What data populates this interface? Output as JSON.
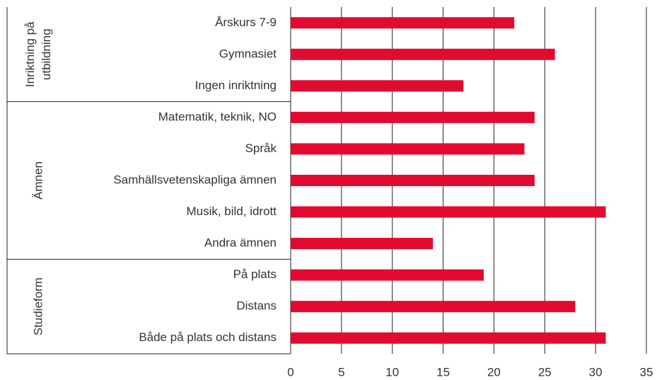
{
  "chart_data": {
    "type": "bar",
    "orientation": "horizontal",
    "color": "#e30a2f",
    "groups": [
      {
        "label": [
          "Inriktning på",
          "utbildning"
        ],
        "categories": [
          "Årskurs 7-9",
          "Gymnasiet",
          "Ingen inriktning"
        ],
        "values": [
          22,
          26,
          17
        ]
      },
      {
        "label": [
          "Ämnen"
        ],
        "categories": [
          "Matematik, teknik, NO",
          "Språk",
          "Samhällsvetenskapliga ämnen",
          "Musik, bild, idrott",
          "Andra ämnen"
        ],
        "values": [
          24,
          23,
          24,
          31,
          14
        ]
      },
      {
        "label": [
          "Studieform"
        ],
        "categories": [
          "På plats",
          "Distans",
          "Både på plats och distans"
        ],
        "values": [
          19,
          28,
          31
        ]
      }
    ],
    "xlim": [
      0,
      35
    ],
    "xticks": [
      0,
      5,
      10,
      15,
      20,
      25,
      30,
      35
    ],
    "grid": true
  }
}
